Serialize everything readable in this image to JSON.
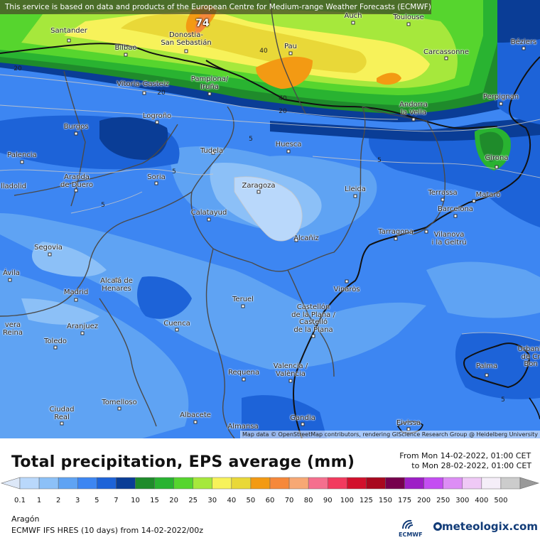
{
  "map": {
    "notice": "This service is based on data and products of the European Centre for Medium-range Weather Forecasts (ECMWF)",
    "attribution": "Map data © OpenStreetMap contributors, rendering GIScience Research Group @ Heidelberg University",
    "max_value": "74",
    "contour_labels": [
      "20",
      "40",
      "40",
      "20",
      "20",
      "5",
      "5",
      "5",
      "5",
      "5"
    ],
    "cities": [
      "Santander",
      "Bilbao",
      "Donostia-\nSan Sebastián",
      "Auch",
      "Toulouse",
      "Pau",
      "Carcassonne",
      "Béziers",
      "Vitoria-Gasteiz",
      "Pamplona/\nIruña",
      "Andorra\nla Vella",
      "Perpignan",
      "Logroño",
      "Burgos",
      "Huesca",
      "Tudela",
      "Palencia",
      "Girona",
      "Aranda\nde Duero",
      "Soria",
      "Zaragoza",
      "Lleida",
      "Terrassa",
      "Mataró",
      "lladolid",
      "Barcelona",
      "Calatayud",
      "Tarragona",
      "Vilanova\ni la Geltrú",
      "Alcañiz",
      "Segovia",
      "Ávila",
      "Alcalá de\nHenares",
      "Madrid",
      "Teruel",
      "Vinaròs",
      "Castellón\nde la Plana /\nCastelló\nde la Plana",
      "Cuenca",
      "Aranjuez",
      "vera\nReina",
      "Toledo",
      "Valencia /\nValència",
      "Requena",
      "Palma",
      "Urbanit\nde Cr\nBon",
      "Ciudad\nReal",
      "Tomelloso",
      "Albacete",
      "Gandia",
      "Eivissa",
      "Almansa"
    ]
  },
  "header": {
    "title": "Total precipitation, EPS average (mm)",
    "period_from": "From Mon 14-02-2022, 01:00 CET",
    "period_to": "to Mon 28-02-2022, 01:00 CET"
  },
  "legend": {
    "labels": [
      "0.1",
      "1",
      "2",
      "3",
      "5",
      "7",
      "10",
      "15",
      "20",
      "25",
      "30",
      "40",
      "50",
      "60",
      "70",
      "80",
      "90",
      "100",
      "125",
      "150",
      "175",
      "200",
      "250",
      "300",
      "400",
      "500"
    ],
    "colors": [
      "#dde8f8",
      "#b9d8fb",
      "#8cc0f7",
      "#5fa3f3",
      "#3d86f2",
      "#1d63d8",
      "#0a3d96",
      "#1f8b2b",
      "#29b331",
      "#56d52e",
      "#a6e83c",
      "#f7f25a",
      "#e9d838",
      "#f39a13",
      "#f6883a",
      "#f7a874",
      "#f56f8e",
      "#f23a5e",
      "#d2102c",
      "#a8081e",
      "#76004d",
      "#9d1fc6",
      "#c44ef2",
      "#dd8ef5",
      "#efc9f6",
      "#f5eef8",
      "#cccccc"
    ]
  },
  "footer": {
    "region": "Aragón",
    "model": "ECMWF IFS HRES (10 days) from 14-02-2022/00z",
    "ecmwf_logo": "ECMWF",
    "brand": "meteologix.com"
  }
}
